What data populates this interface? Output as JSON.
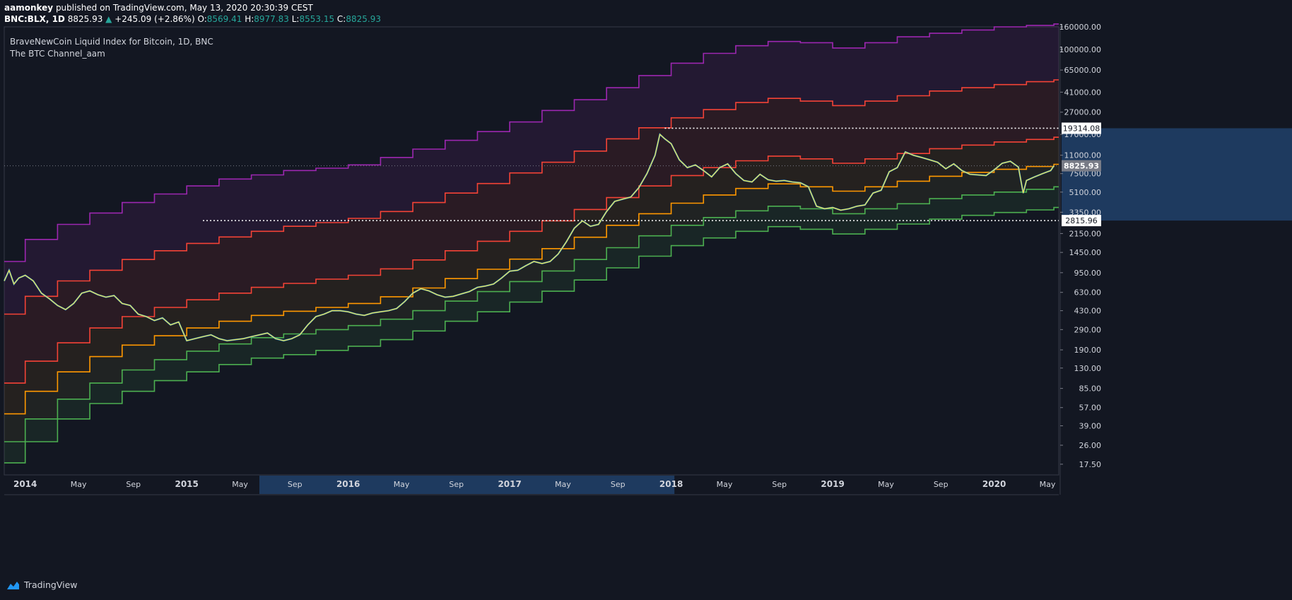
{
  "publish": {
    "author": "aamonkey",
    "text": "published on TradingView.com, May 13, 2020 20:30:39 CEST"
  },
  "ohlc": {
    "symbol": "BNC:BLX, 1D",
    "last": "8825.93",
    "arrow": "▲",
    "change": "+245.09 (+2.86%)",
    "o_label": "O:",
    "o": "8569.41",
    "h_label": "H:",
    "h": "8977.83",
    "l_label": "L:",
    "l": "8553.15",
    "c_label": "C:",
    "c": "8825.93"
  },
  "legend": {
    "title": "BraveNewCoin Liquid Index for Bitcoin, 1D, BNC",
    "indicator": "The BTC Channel_aam"
  },
  "footer": {
    "brand": "TradingView",
    "logo_icon": "tradingview-cloud-icon"
  },
  "colors": {
    "background": "#131722",
    "price": "#f5e84e",
    "price_alt": "#2196f3",
    "band_purple": "#9c27b0",
    "band_red": "#f44336",
    "band_orange": "#ff9800",
    "band_green": "#4caf50",
    "axis_text": "#d1d4dc",
    "highlight": "#1e3a5f"
  },
  "chart_data": {
    "type": "line",
    "scale": "log",
    "title": "BraveNewCoin Liquid Index for Bitcoin, 1D, BNC",
    "ylim": [
      14,
      160000
    ],
    "x_ticks": [
      "2014",
      "May",
      "Sep",
      "2015",
      "May",
      "Sep",
      "2016",
      "May",
      "Sep",
      "2017",
      "May",
      "Sep",
      "2018",
      "May",
      "Sep",
      "2019",
      "May",
      "Sep",
      "2020",
      "May"
    ],
    "x_tick_years": [
      2014.0,
      2014.33,
      2014.67,
      2015.0,
      2015.33,
      2015.67,
      2016.0,
      2016.33,
      2016.67,
      2017.0,
      2017.33,
      2017.67,
      2018.0,
      2018.33,
      2018.67,
      2019.0,
      2019.33,
      2019.67,
      2020.0,
      2020.33
    ],
    "xlim": [
      2013.87,
      2020.4
    ],
    "y_ticks": [
      17.5,
      26,
      39,
      57,
      85,
      130,
      190,
      290,
      430,
      630,
      950,
      1450,
      2150,
      3350,
      5100,
      7500,
      11000,
      17000,
      27000,
      41000,
      65000,
      100000,
      160000
    ],
    "y_tick_labels": [
      "17.50",
      "26.00",
      "39.00",
      "57.00",
      "85.00",
      "130.00",
      "190.00",
      "290.00",
      "430.00",
      "630.00",
      "950.00",
      "1450.00",
      "2150.00",
      "3350.00",
      "5100.00",
      "7500.00",
      "11000.00",
      "17000.00",
      "27000.00",
      "41000.00",
      "65000.00",
      "100000.00",
      "160000.00"
    ],
    "highlight_range": [
      2015.45,
      2018.02
    ],
    "price_series": {
      "name": "BLX",
      "x": [
        2013.87,
        2013.9,
        2013.93,
        2013.96,
        2014.0,
        2014.05,
        2014.1,
        2014.15,
        2014.2,
        2014.25,
        2014.3,
        2014.35,
        2014.4,
        2014.45,
        2014.5,
        2014.55,
        2014.6,
        2014.65,
        2014.7,
        2014.75,
        2014.8,
        2014.85,
        2014.9,
        2014.95,
        2015.0,
        2015.05,
        2015.1,
        2015.15,
        2015.2,
        2015.25,
        2015.3,
        2015.35,
        2015.4,
        2015.45,
        2015.5,
        2015.55,
        2015.6,
        2015.65,
        2015.7,
        2015.75,
        2015.8,
        2015.85,
        2015.9,
        2015.95,
        2016.0,
        2016.05,
        2016.1,
        2016.15,
        2016.2,
        2016.25,
        2016.3,
        2016.35,
        2016.4,
        2016.45,
        2016.5,
        2016.55,
        2016.6,
        2016.65,
        2016.7,
        2016.75,
        2016.8,
        2016.85,
        2016.9,
        2016.95,
        2017.0,
        2017.05,
        2017.1,
        2017.15,
        2017.2,
        2017.25,
        2017.3,
        2017.35,
        2017.4,
        2017.45,
        2017.5,
        2017.55,
        2017.6,
        2017.65,
        2017.7,
        2017.75,
        2017.8,
        2017.85,
        2017.9,
        2017.93,
        2017.96,
        2018.0,
        2018.05,
        2018.1,
        2018.15,
        2018.2,
        2018.25,
        2018.3,
        2018.35,
        2018.4,
        2018.45,
        2018.5,
        2018.55,
        2018.6,
        2018.65,
        2018.7,
        2018.75,
        2018.8,
        2018.85,
        2018.9,
        2018.95,
        2019.0,
        2019.05,
        2019.1,
        2019.15,
        2019.2,
        2019.25,
        2019.3,
        2019.35,
        2019.4,
        2019.45,
        2019.5,
        2019.55,
        2019.6,
        2019.65,
        2019.7,
        2019.75,
        2019.8,
        2019.85,
        2019.9,
        2019.95,
        2020.0,
        2020.05,
        2020.1,
        2020.15,
        2020.18,
        2020.2,
        2020.25,
        2020.3,
        2020.35,
        2020.37
      ],
      "y": [
        800,
        1000,
        750,
        850,
        900,
        800,
        620,
        550,
        480,
        440,
        500,
        620,
        650,
        600,
        570,
        590,
        500,
        480,
        400,
        380,
        350,
        370,
        320,
        340,
        230,
        240,
        250,
        260,
        240,
        230,
        235,
        240,
        250,
        260,
        270,
        240,
        230,
        240,
        260,
        320,
        380,
        400,
        430,
        430,
        420,
        400,
        390,
        410,
        420,
        430,
        450,
        520,
        620,
        680,
        650,
        600,
        570,
        580,
        610,
        640,
        700,
        720,
        750,
        850,
        980,
        1000,
        1100,
        1200,
        1150,
        1200,
        1400,
        1800,
        2400,
        2800,
        2500,
        2600,
        3400,
        4200,
        4400,
        4600,
        5600,
        7500,
        11000,
        17000,
        15500,
        14000,
        10000,
        8500,
        9000,
        8000,
        7000,
        8500,
        9200,
        7500,
        6500,
        6300,
        7400,
        6600,
        6400,
        6500,
        6300,
        6200,
        5700,
        3800,
        3600,
        3700,
        3500,
        3600,
        3800,
        3900,
        5000,
        5300,
        7800,
        8500,
        11800,
        11000,
        10500,
        10000,
        9500,
        8300,
        9200,
        8000,
        7400,
        7300,
        7200,
        8100,
        9300,
        9700,
        8600,
        5000,
        6500,
        7000,
        7500,
        8000,
        8826
      ]
    },
    "series": [
      {
        "key": "band_purple_top",
        "x": [
          2013.87,
          2014.0,
          2014.2,
          2014.4,
          2014.6,
          2014.8,
          2015.0,
          2015.2,
          2015.4,
          2015.6,
          2015.8,
          2016.0,
          2016.2,
          2016.4,
          2016.6,
          2016.8,
          2017.0,
          2017.2,
          2017.4,
          2017.6,
          2017.8,
          2018.0,
          2018.2,
          2018.4,
          2018.6,
          2018.8,
          2019.0,
          2019.2,
          2019.4,
          2019.6,
          2019.8,
          2020.0,
          2020.2,
          2020.37
        ],
        "y": [
          1200,
          1900,
          2600,
          3300,
          4100,
          4900,
          5800,
          6700,
          7300,
          8000,
          8400,
          9000,
          10500,
          12500,
          15000,
          18000,
          22000,
          28000,
          35000,
          45000,
          58000,
          75000,
          92000,
          108000,
          118000,
          115000,
          103000,
          115000,
          130000,
          140000,
          150000,
          160000,
          165000,
          170000
        ]
      },
      {
        "key": "band_red_top",
        "x": [
          2013.87,
          2014.0,
          2014.2,
          2014.4,
          2014.6,
          2014.8,
          2015.0,
          2015.2,
          2015.4,
          2015.6,
          2015.8,
          2016.0,
          2016.2,
          2016.4,
          2016.6,
          2016.8,
          2017.0,
          2017.2,
          2017.4,
          2017.6,
          2017.8,
          2018.0,
          2018.2,
          2018.4,
          2018.6,
          2018.8,
          2019.0,
          2019.2,
          2019.4,
          2019.6,
          2019.8,
          2020.0,
          2020.2,
          2020.37
        ],
        "y": [
          400,
          580,
          800,
          1000,
          1250,
          1500,
          1750,
          2000,
          2250,
          2500,
          2700,
          2950,
          3400,
          4100,
          5000,
          6100,
          7600,
          9500,
          12000,
          15500,
          19500,
          24000,
          28500,
          33000,
          36000,
          34000,
          31000,
          34000,
          38000,
          42000,
          45000,
          48000,
          51000,
          53000
        ]
      },
      {
        "key": "band_red_mid",
        "x": [
          2013.87,
          2014.0,
          2014.2,
          2014.4,
          2014.6,
          2014.8,
          2015.0,
          2015.2,
          2015.4,
          2015.6,
          2015.8,
          2016.0,
          2016.2,
          2016.4,
          2016.6,
          2016.8,
          2017.0,
          2017.2,
          2017.4,
          2017.6,
          2017.8,
          2018.0,
          2018.2,
          2018.4,
          2018.6,
          2018.8,
          2019.0,
          2019.2,
          2019.4,
          2019.6,
          2019.8,
          2020.0,
          2020.2,
          2020.37
        ],
        "y": [
          95,
          150,
          220,
          300,
          380,
          460,
          540,
          620,
          700,
          760,
          830,
          900,
          1030,
          1240,
          1500,
          1830,
          2250,
          2800,
          3550,
          4550,
          5800,
          7200,
          8500,
          9800,
          10800,
          10200,
          9300,
          10200,
          11400,
          12600,
          13600,
          14500,
          15300,
          16000
        ]
      },
      {
        "key": "band_orange",
        "x": [
          2013.87,
          2014.0,
          2014.2,
          2014.4,
          2014.6,
          2014.8,
          2015.0,
          2015.2,
          2015.4,
          2015.6,
          2015.8,
          2016.0,
          2016.2,
          2016.4,
          2016.6,
          2016.8,
          2017.0,
          2017.2,
          2017.4,
          2017.6,
          2017.8,
          2018.0,
          2018.2,
          2018.4,
          2018.6,
          2018.8,
          2019.0,
          2019.2,
          2019.4,
          2019.6,
          2019.8,
          2020.0,
          2020.2,
          2020.37
        ],
        "y": [
          50,
          80,
          120,
          165,
          210,
          255,
          300,
          345,
          390,
          425,
          460,
          500,
          575,
          690,
          840,
          1020,
          1260,
          1570,
          1990,
          2550,
          3250,
          4050,
          4800,
          5500,
          6050,
          5700,
          5200,
          5700,
          6400,
          7100,
          7700,
          8200,
          8700,
          9100
        ]
      },
      {
        "key": "band_green_top",
        "x": [
          2013.87,
          2014.0,
          2014.2,
          2014.4,
          2014.6,
          2014.8,
          2015.0,
          2015.2,
          2015.4,
          2015.6,
          2015.8,
          2016.0,
          2016.2,
          2016.4,
          2016.6,
          2016.8,
          2017.0,
          2017.2,
          2017.4,
          2017.6,
          2017.8,
          2018.0,
          2018.2,
          2018.4,
          2018.6,
          2018.8,
          2019.0,
          2019.2,
          2019.4,
          2019.6,
          2019.8,
          2020.0,
          2020.2,
          2020.37
        ],
        "y": [
          28,
          45,
          68,
          95,
          125,
          155,
          185,
          215,
          245,
          265,
          290,
          315,
          360,
          430,
          525,
          640,
          790,
          985,
          1250,
          1600,
          2050,
          2550,
          3000,
          3450,
          3800,
          3600,
          3250,
          3600,
          4000,
          4450,
          4800,
          5100,
          5400,
          5700
        ]
      },
      {
        "key": "band_green_bottom",
        "x": [
          2013.87,
          2014.0,
          2014.2,
          2014.4,
          2014.6,
          2014.8,
          2015.0,
          2015.2,
          2015.4,
          2015.6,
          2015.8,
          2016.0,
          2016.2,
          2016.4,
          2016.6,
          2016.8,
          2017.0,
          2017.2,
          2017.4,
          2017.6,
          2017.8,
          2018.0,
          2018.2,
          2018.4,
          2018.6,
          2018.8,
          2019.0,
          2019.2,
          2019.4,
          2019.6,
          2019.8,
          2020.0,
          2020.2,
          2020.37
        ],
        "y": [
          18,
          28,
          45,
          62,
          80,
          100,
          120,
          140,
          160,
          172,
          188,
          205,
          235,
          282,
          345,
          420,
          515,
          645,
          815,
          1050,
          1340,
          1670,
          1960,
          2250,
          2480,
          2350,
          2130,
          2350,
          2620,
          2900,
          3140,
          3330,
          3520,
          3700
        ]
      }
    ],
    "price_labels": [
      {
        "label": "19314.08",
        "value": 19314.08
      },
      {
        "label": "8825.93",
        "value": 8825.93
      },
      {
        "label": "2815.96",
        "value": 2815.96
      }
    ]
  }
}
